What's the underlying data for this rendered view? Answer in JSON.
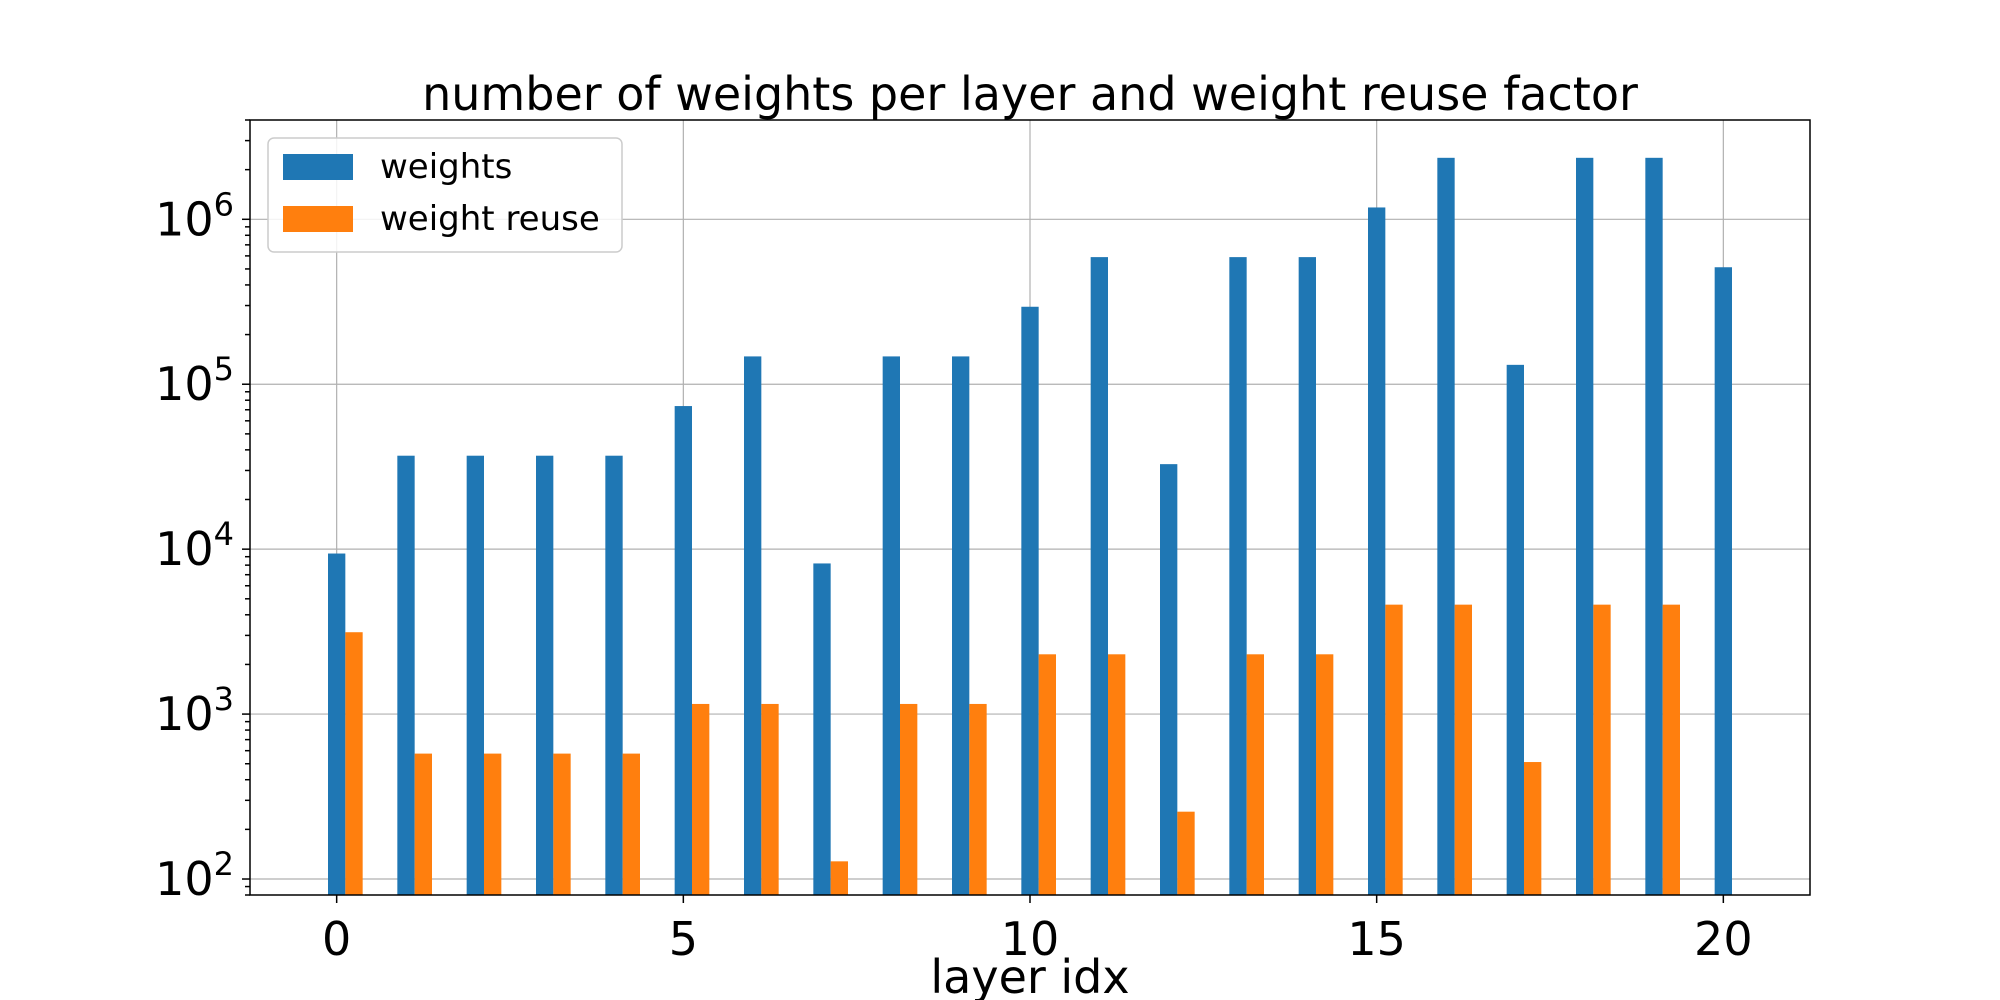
{
  "chart_data": {
    "type": "bar",
    "title": "number of weights per layer and weight reuse factor",
    "xlabel": "layer idx",
    "ylabel": "",
    "yscale": "log",
    "ylim": [
      80,
      4000000
    ],
    "xlim": [
      -1.25,
      21.25
    ],
    "xticks": [
      0,
      5,
      10,
      15,
      20
    ],
    "yticks": [
      {
        "value": 100,
        "base": "10",
        "exp": "2"
      },
      {
        "value": 1000,
        "base": "10",
        "exp": "3"
      },
      {
        "value": 10000,
        "base": "10",
        "exp": "4"
      },
      {
        "value": 100000,
        "base": "10",
        "exp": "5"
      },
      {
        "value": 1000000,
        "base": "10",
        "exp": "6"
      }
    ],
    "grid": true,
    "legend_position": "upper-left",
    "x": [
      0,
      1,
      2,
      3,
      4,
      5,
      6,
      7,
      8,
      9,
      10,
      11,
      12,
      13,
      14,
      15,
      16,
      17,
      18,
      19,
      20
    ],
    "series": [
      {
        "name": "weights",
        "color": "#1f77b4",
        "values": [
          9408,
          36864,
          36864,
          36864,
          36864,
          73728,
          147456,
          8192,
          147456,
          147456,
          294912,
          589824,
          32768,
          589824,
          589824,
          1179648,
          2359296,
          131072,
          2359296,
          2359296,
          512000
        ]
      },
      {
        "name": "weight reuse",
        "color": "#ff7f0e",
        "values": [
          3136,
          576,
          576,
          576,
          576,
          1152,
          1152,
          128,
          1152,
          1152,
          2304,
          2304,
          256,
          2304,
          2304,
          4608,
          4608,
          512,
          4608,
          4608,
          null
        ]
      }
    ]
  }
}
